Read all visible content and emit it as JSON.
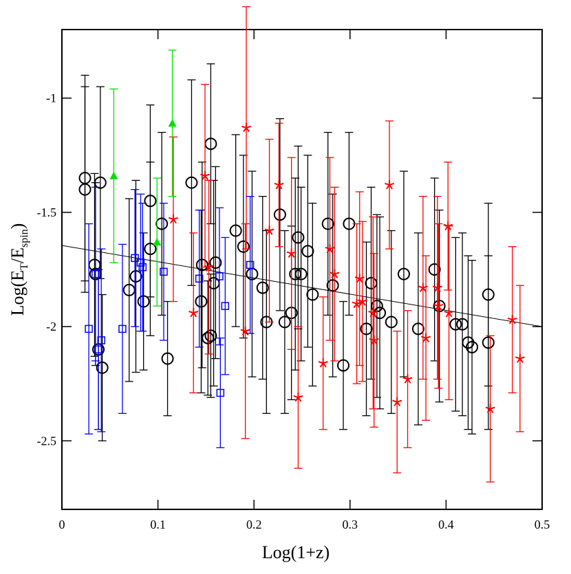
{
  "chart_data": {
    "type": "scatter",
    "x_label": "Log(1+z)",
    "y_label_parts": [
      "Log(E",
      "T",
      "/E",
      "spin",
      ")"
    ],
    "xlim": [
      0,
      0.5
    ],
    "ylim": [
      -2.8,
      -0.7
    ],
    "xticks": [
      0,
      0.1,
      0.2,
      0.3,
      0.4,
      0.5
    ],
    "yticks": [
      -1,
      -1.5,
      -2,
      -2.5
    ],
    "fit_line": {
      "x": [
        0,
        0.5
      ],
      "y": [
        -1.645,
        -2.0
      ],
      "color": "#000000"
    },
    "series": [
      {
        "marker": "circle",
        "color": "#000000",
        "x": [
          0.024,
          0.024,
          0.04,
          0.034,
          0.035,
          0.038,
          0.042,
          0.07,
          0.077,
          0.085,
          0.092,
          0.092,
          0.104,
          0.11,
          0.135,
          0.145,
          0.146,
          0.152,
          0.155,
          0.155,
          0.158,
          0.16,
          0.181,
          0.189,
          0.198,
          0.209,
          0.213,
          0.227,
          0.232,
          0.239,
          0.243,
          0.246,
          0.249,
          0.256,
          0.261,
          0.277,
          0.282,
          0.293,
          0.299,
          0.317,
          0.322,
          0.328,
          0.331,
          0.343,
          0.356,
          0.371,
          0.388,
          0.393,
          0.41,
          0.417,
          0.423,
          0.427,
          0.444,
          0.444
        ],
        "values": [
          -1.35,
          -1.4,
          -1.37,
          -1.73,
          -1.77,
          -2.1,
          -2.18,
          -1.84,
          -1.78,
          -1.89,
          -1.45,
          -1.66,
          -1.55,
          -2.14,
          -1.37,
          -1.89,
          -1.73,
          -2.05,
          -2.04,
          -1.2,
          -1.81,
          -1.72,
          -1.58,
          -1.65,
          -1.77,
          -1.83,
          -1.98,
          -1.51,
          -1.98,
          -1.94,
          -1.77,
          -1.61,
          -1.77,
          -1.67,
          -1.86,
          -1.55,
          -1.82,
          -2.17,
          -1.55,
          -2.01,
          -1.81,
          -1.91,
          -1.94,
          -1.98,
          -1.77,
          -2.01,
          -1.75,
          -1.91,
          -1.99,
          -1.99,
          -2.07,
          -2.09,
          -2.07,
          -1.86
        ],
        "errors": [
          0.45,
          0.45,
          0.42,
          0.4,
          0.4,
          0.35,
          0.32,
          0.4,
          0.42,
          0.3,
          0.42,
          0.38,
          0.4,
          0.25,
          0.45,
          0.4,
          0.45,
          0.25,
          0.27,
          0.35,
          0.45,
          0.42,
          0.42,
          0.4,
          0.45,
          0.4,
          0.4,
          0.42,
          0.4,
          0.38,
          0.42,
          0.4,
          0.38,
          0.42,
          0.4,
          0.4,
          0.4,
          0.28,
          0.4,
          0.38,
          0.42,
          0.4,
          0.42,
          0.4,
          0.45,
          0.42,
          0.4,
          0.42,
          0.38,
          0.4,
          0.38,
          0.38,
          0.38,
          0.4
        ]
      },
      {
        "marker": "star",
        "color": "#ff0000",
        "x": [
          0.116,
          0.137,
          0.149,
          0.153,
          0.192,
          0.191,
          0.216,
          0.226,
          0.239,
          0.246,
          0.272,
          0.279,
          0.284,
          0.307,
          0.31,
          0.313,
          0.324,
          0.325,
          0.341,
          0.349,
          0.36,
          0.376,
          0.379,
          0.391,
          0.392,
          0.402,
          0.403,
          0.446,
          0.469,
          0.477
        ],
        "values": [
          -1.53,
          -1.94,
          -1.34,
          -1.74,
          -1.13,
          -2.02,
          -1.58,
          -1.38,
          -1.68,
          -2.31,
          -2.16,
          -1.66,
          -1.77,
          -1.9,
          -1.79,
          -1.89,
          -1.94,
          -2.06,
          -1.38,
          -2.33,
          -2.23,
          -1.83,
          -2.05,
          -1.83,
          -1.91,
          -1.56,
          -1.94,
          -2.36,
          -1.97,
          -2.14
        ],
        "errors": [
          0.36,
          0.35,
          0.4,
          0.38,
          0.53,
          0.47,
          0.4,
          0.27,
          0.42,
          0.31,
          0.29,
          0.4,
          0.38,
          0.35,
          0.38,
          0.35,
          0.42,
          0.38,
          0.28,
          0.31,
          0.3,
          0.4,
          0.36,
          0.4,
          0.36,
          0.28,
          0.38,
          0.32,
          0.32,
          0.32
        ]
      },
      {
        "marker": "square",
        "color": "#0000ff",
        "x": [
          0.028,
          0.035,
          0.038,
          0.041,
          0.063,
          0.076,
          0.082,
          0.084,
          0.106,
          0.143,
          0.164,
          0.165,
          0.17,
          0.196
        ],
        "values": [
          -2.01,
          -1.77,
          -2.1,
          -2.06,
          -2.01,
          -1.7,
          -1.72,
          -1.74,
          -1.76,
          -1.79,
          -1.78,
          -2.29,
          -1.91,
          -1.73
        ],
        "errors": [
          0.46,
          0.38,
          0.35,
          0.4,
          0.37,
          0.3,
          0.3,
          0.28,
          0.3,
          0.3,
          0.3,
          0.24,
          0.3,
          0.3
        ]
      },
      {
        "marker": "triangle",
        "color": "#00e000",
        "x": [
          0.054,
          0.099,
          0.115
        ],
        "values": [
          -1.34,
          -1.63,
          -1.11
        ],
        "errors": [
          0.38,
          0.28,
          0.32
        ]
      }
    ]
  }
}
